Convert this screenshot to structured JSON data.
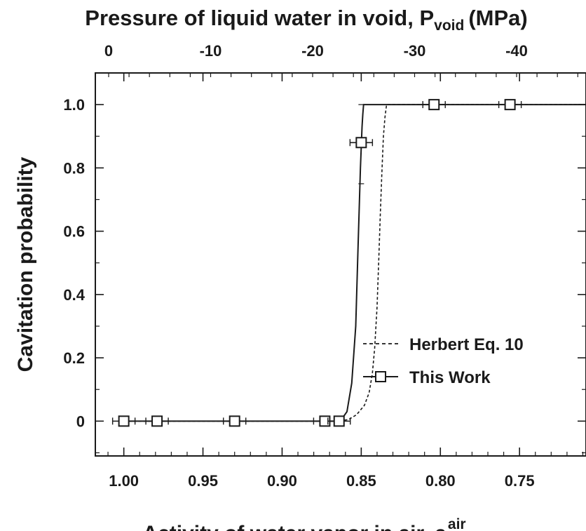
{
  "chart_data": {
    "type": "line",
    "title": "",
    "top_axis": {
      "label_main": "Pressure of liquid water in void, P",
      "label_sub": "void",
      "label_unit": "(MPa)",
      "ticks": [
        {
          "value": 0,
          "label": "0"
        },
        {
          "value": -10,
          "label": "-10"
        },
        {
          "value": -20,
          "label": "-20"
        },
        {
          "value": -30,
          "label": "-30"
        },
        {
          "value": -40,
          "label": "-40"
        }
      ]
    },
    "x_axis": {
      "label_main": "Activity of water vapor in air, a",
      "label_sup": "air",
      "range": [
        1.018,
        0.708
      ],
      "reversed": true,
      "ticks": [
        {
          "value": 1.0,
          "label": "1.00"
        },
        {
          "value": 0.95,
          "label": "0.95"
        },
        {
          "value": 0.9,
          "label": "0.90"
        },
        {
          "value": 0.85,
          "label": "0.85"
        },
        {
          "value": 0.8,
          "label": "0.80"
        },
        {
          "value": 0.75,
          "label": "0.75"
        }
      ]
    },
    "y_axis": {
      "label": "Cavitation probability",
      "range": [
        -0.11,
        1.1
      ],
      "ticks": [
        {
          "value": 0,
          "label": "0"
        },
        {
          "value": 0.2,
          "label": "0.2"
        },
        {
          "value": 0.4,
          "label": "0.4"
        },
        {
          "value": 0.6,
          "label": "0.6"
        },
        {
          "value": 0.8,
          "label": "0.8"
        },
        {
          "value": 1.0,
          "label": "1.0"
        }
      ]
    },
    "grid": false,
    "legend_position": "bottom-right",
    "series": [
      {
        "name": "Herbert Eq. 10",
        "style": "dashed",
        "color": "#1a1a1a",
        "x": [
          1.0,
          0.9,
          0.865,
          0.858,
          0.853,
          0.848,
          0.845,
          0.843,
          0.8415,
          0.84,
          0.839,
          0.838,
          0.837,
          0.836,
          0.835,
          0.834,
          0.8,
          0.708
        ],
        "y": [
          0.0,
          0.0,
          0.0,
          0.005,
          0.02,
          0.05,
          0.09,
          0.15,
          0.23,
          0.36,
          0.5,
          0.65,
          0.78,
          0.9,
          0.96,
          1.0,
          1.0,
          1.0
        ]
      },
      {
        "name": "This Work",
        "style": "solid",
        "marker": "square",
        "color": "#1a1a1a",
        "x": [
          1.0,
          0.9,
          0.866,
          0.8625,
          0.859,
          0.856,
          0.8535,
          0.852,
          0.8505,
          0.8495,
          0.849,
          0.8485,
          0.8,
          0.708
        ],
        "y": [
          0.0,
          0.0,
          0.0,
          0.005,
          0.03,
          0.12,
          0.3,
          0.55,
          0.8,
          0.93,
          0.97,
          1.0,
          1.0,
          1.0
        ],
        "marker_points": [
          {
            "x": 1.0,
            "y": 0.0
          },
          {
            "x": 0.979,
            "y": 0.0
          },
          {
            "x": 0.93,
            "y": 0.0
          },
          {
            "x": 0.873,
            "y": 0.0
          },
          {
            "x": 0.864,
            "y": 0.0
          },
          {
            "x": 0.85,
            "y": 0.88
          },
          {
            "x": 0.804,
            "y": 1.0
          },
          {
            "x": 0.756,
            "y": 1.0
          }
        ]
      }
    ]
  }
}
